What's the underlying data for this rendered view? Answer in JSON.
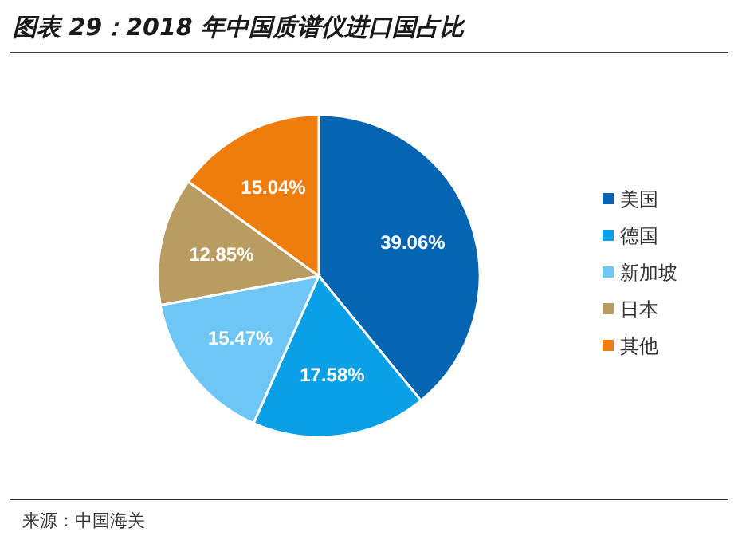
{
  "chart_data": {
    "type": "pie",
    "title": "图表 29：2018 年中国质谱仪进口国占比",
    "categories": [
      "美国",
      "德国",
      "新加坡",
      "日本",
      "其他"
    ],
    "values": [
      39.06,
      17.58,
      15.47,
      12.85,
      15.04
    ],
    "value_labels": [
      "39.06%",
      "17.58%",
      "15.47%",
      "12.85%",
      "15.04%"
    ],
    "colors": [
      "#0665b3",
      "#0aa0e6",
      "#6ec6f5",
      "#b89c62",
      "#ee7d0e"
    ],
    "legend": "right",
    "annotations": [
      "来源：中国海关"
    ]
  }
}
